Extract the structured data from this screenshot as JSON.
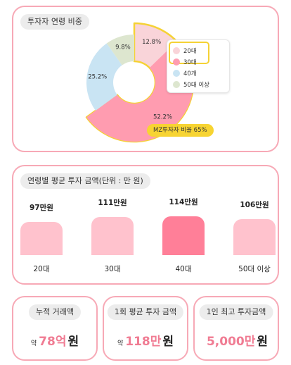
{
  "donut_card": {
    "title": "투자자 연령 비중",
    "badge": "MZ투자자 비율 65%"
  },
  "bar_card": {
    "title": "연령별 평균 투자 금액(단위 : 만 원)"
  },
  "stats": [
    {
      "label": "누적 거래액",
      "prefix": "약",
      "value": "78억",
      "unit": "원"
    },
    {
      "label": "1회 평균 투자 금액",
      "prefix": "약",
      "value": "118만",
      "unit": "원"
    },
    {
      "label": "1인 최고 투자금액",
      "prefix": "",
      "value": "5,000만",
      "unit": "원"
    }
  ],
  "colors": {
    "card_border": "#f7a9b6",
    "highlight": "#f5d235",
    "accent_text": "#f07c93"
  },
  "chart_data": [
    {
      "type": "pie",
      "title": "투자자 연령 비중",
      "categories": [
        "20대",
        "30대",
        "40개",
        "50대 이상"
      ],
      "values": [
        12.8,
        52.2,
        25.2,
        9.8
      ],
      "labels": [
        "12.8%",
        "52.2%",
        "25.2%",
        "9.8%"
      ],
      "colors": [
        "#f9d4d9",
        "#ff9cb0",
        "#c9e4f3",
        "#dde6cf"
      ],
      "highlighted": [
        "20대",
        "30대"
      ],
      "legend_position": "right",
      "annotation": "MZ투자자 비율 65%"
    },
    {
      "type": "bar",
      "title": "연령별 평균 투자 금액(단위 : 만 원)",
      "categories": [
        "20대",
        "30대",
        "40대",
        "50대 이상"
      ],
      "values": [
        97,
        111,
        114,
        106
      ],
      "value_labels": [
        "97만원",
        "111만원",
        "114만원",
        "106만원"
      ],
      "colors": [
        "#ffc2cd",
        "#ffc2cd",
        "#ff7f98",
        "#ffc2cd"
      ],
      "ylim": [
        0,
        114
      ]
    }
  ]
}
